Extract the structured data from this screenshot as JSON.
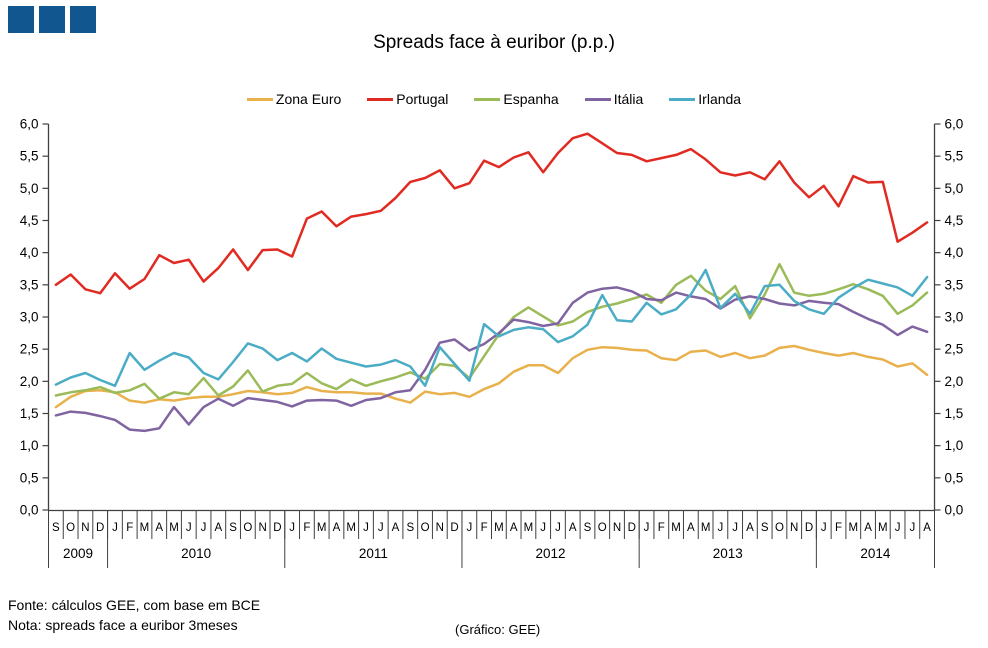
{
  "logo": {
    "color": "#11568F",
    "square_count": 3
  },
  "title": "Spreads face à euribor (p.p.)",
  "footer": {
    "fonte": "Fonte:  cálculos GEE, com base em BCE",
    "nota": "Nota:  spreads face a euribor 3meses",
    "grafico": "(Gráfico:  GEE)"
  },
  "chart_data": {
    "type": "line",
    "title": "Spreads face à euribor (p.p.)",
    "ylabel": "",
    "xlabel": "",
    "ylim": [
      0,
      6
    ],
    "y_tick_step": 0.5,
    "decimal_style": "comma",
    "grid": false,
    "legend_position": "top",
    "axis_color": "#404040",
    "year_groups": [
      {
        "label": "2009",
        "months": 4
      },
      {
        "label": "2010",
        "months": 12
      },
      {
        "label": "2011",
        "months": 12
      },
      {
        "label": "2012",
        "months": 12
      },
      {
        "label": "2013",
        "months": 12
      },
      {
        "label": "2014",
        "months": 8
      }
    ],
    "month_letters": [
      "S",
      "O",
      "N",
      "D",
      "J",
      "F",
      "M",
      "A",
      "M",
      "J",
      "J",
      "A",
      "S",
      "O",
      "N",
      "D",
      "J",
      "F",
      "M",
      "A",
      "M",
      "J",
      "J",
      "A",
      "S",
      "O",
      "N",
      "D",
      "J",
      "F",
      "M",
      "A",
      "M",
      "J",
      "J",
      "A",
      "S",
      "O",
      "N",
      "D",
      "J",
      "F",
      "M",
      "A",
      "M",
      "J",
      "J",
      "A",
      "S",
      "O",
      "N",
      "D",
      "J",
      "F",
      "M",
      "A",
      "M",
      "J",
      "J",
      "A"
    ],
    "series": [
      {
        "name": "Zona Euro",
        "color": "#E8B14C",
        "values": [
          1.6,
          1.76,
          1.85,
          1.86,
          1.83,
          1.7,
          1.67,
          1.72,
          1.7,
          1.74,
          1.76,
          1.76,
          1.8,
          1.85,
          1.83,
          1.8,
          1.82,
          1.91,
          1.85,
          1.83,
          1.83,
          1.81,
          1.81,
          1.73,
          1.67,
          1.84,
          1.8,
          1.82,
          1.76,
          1.88,
          1.97,
          2.15,
          2.25,
          2.25,
          2.13,
          2.36,
          2.49,
          2.53,
          2.52,
          2.49,
          2.48,
          2.36,
          2.33,
          2.46,
          2.48,
          2.38,
          2.44,
          2.36,
          2.4,
          2.52,
          2.55,
          2.49,
          2.44,
          2.4,
          2.44,
          2.38,
          2.34,
          2.23,
          2.28,
          2.1
        ]
      },
      {
        "name": "Portugal",
        "color": "#E02B22",
        "values": [
          3.5,
          3.66,
          3.43,
          3.37,
          3.68,
          3.44,
          3.59,
          3.96,
          3.84,
          3.89,
          3.55,
          3.76,
          4.05,
          3.73,
          4.04,
          4.05,
          3.94,
          4.53,
          4.64,
          4.41,
          4.56,
          4.6,
          4.65,
          4.85,
          5.1,
          5.16,
          5.28,
          5.0,
          5.08,
          5.43,
          5.33,
          5.48,
          5.56,
          5.25,
          5.55,
          5.78,
          5.85,
          5.7,
          5.55,
          5.52,
          5.42,
          5.47,
          5.52,
          5.61,
          5.45,
          5.25,
          5.2,
          5.25,
          5.14,
          5.42,
          5.09,
          4.86,
          5.04,
          4.72,
          5.19,
          5.09,
          5.1,
          4.17,
          4.31,
          4.47
        ]
      },
      {
        "name": "Espanha",
        "color": "#9BBB59",
        "values": [
          1.78,
          1.83,
          1.86,
          1.91,
          1.82,
          1.86,
          1.96,
          1.73,
          1.83,
          1.8,
          2.05,
          1.78,
          1.92,
          2.17,
          1.84,
          1.93,
          1.96,
          2.13,
          1.97,
          1.88,
          2.03,
          1.93,
          2.0,
          2.06,
          2.14,
          2.04,
          2.27,
          2.24,
          2.05,
          2.39,
          2.73,
          3.0,
          3.15,
          3.01,
          2.87,
          2.93,
          3.08,
          3.16,
          3.21,
          3.28,
          3.35,
          3.22,
          3.5,
          3.64,
          3.41,
          3.28,
          3.48,
          2.98,
          3.35,
          3.82,
          3.38,
          3.33,
          3.36,
          3.43,
          3.51,
          3.43,
          3.33,
          3.05,
          3.18,
          3.38
        ]
      },
      {
        "name": "Itália",
        "color": "#8064A2",
        "values": [
          1.47,
          1.53,
          1.51,
          1.46,
          1.4,
          1.25,
          1.23,
          1.27,
          1.6,
          1.33,
          1.6,
          1.73,
          1.62,
          1.74,
          1.71,
          1.68,
          1.61,
          1.7,
          1.71,
          1.7,
          1.62,
          1.71,
          1.74,
          1.83,
          1.86,
          2.18,
          2.6,
          2.65,
          2.48,
          2.58,
          2.75,
          2.96,
          2.92,
          2.86,
          2.9,
          3.22,
          3.38,
          3.44,
          3.46,
          3.4,
          3.28,
          3.26,
          3.38,
          3.32,
          3.28,
          3.13,
          3.27,
          3.32,
          3.28,
          3.21,
          3.18,
          3.25,
          3.22,
          3.2,
          3.08,
          2.97,
          2.88,
          2.72,
          2.85,
          2.77
        ]
      },
      {
        "name": "Irlanda",
        "color": "#4BACC6",
        "values": [
          1.95,
          2.06,
          2.13,
          2.02,
          1.93,
          2.44,
          2.18,
          2.32,
          2.44,
          2.37,
          2.13,
          2.03,
          2.3,
          2.59,
          2.51,
          2.33,
          2.44,
          2.31,
          2.51,
          2.35,
          2.29,
          2.23,
          2.26,
          2.33,
          2.23,
          1.93,
          2.53,
          2.27,
          2.01,
          2.89,
          2.7,
          2.8,
          2.84,
          2.81,
          2.61,
          2.7,
          2.88,
          3.34,
          2.95,
          2.93,
          3.22,
          3.04,
          3.12,
          3.35,
          3.73,
          3.14,
          3.36,
          3.05,
          3.48,
          3.5,
          3.25,
          3.12,
          3.05,
          3.3,
          3.45,
          3.58,
          3.52,
          3.46,
          3.33,
          3.62
        ]
      }
    ]
  }
}
